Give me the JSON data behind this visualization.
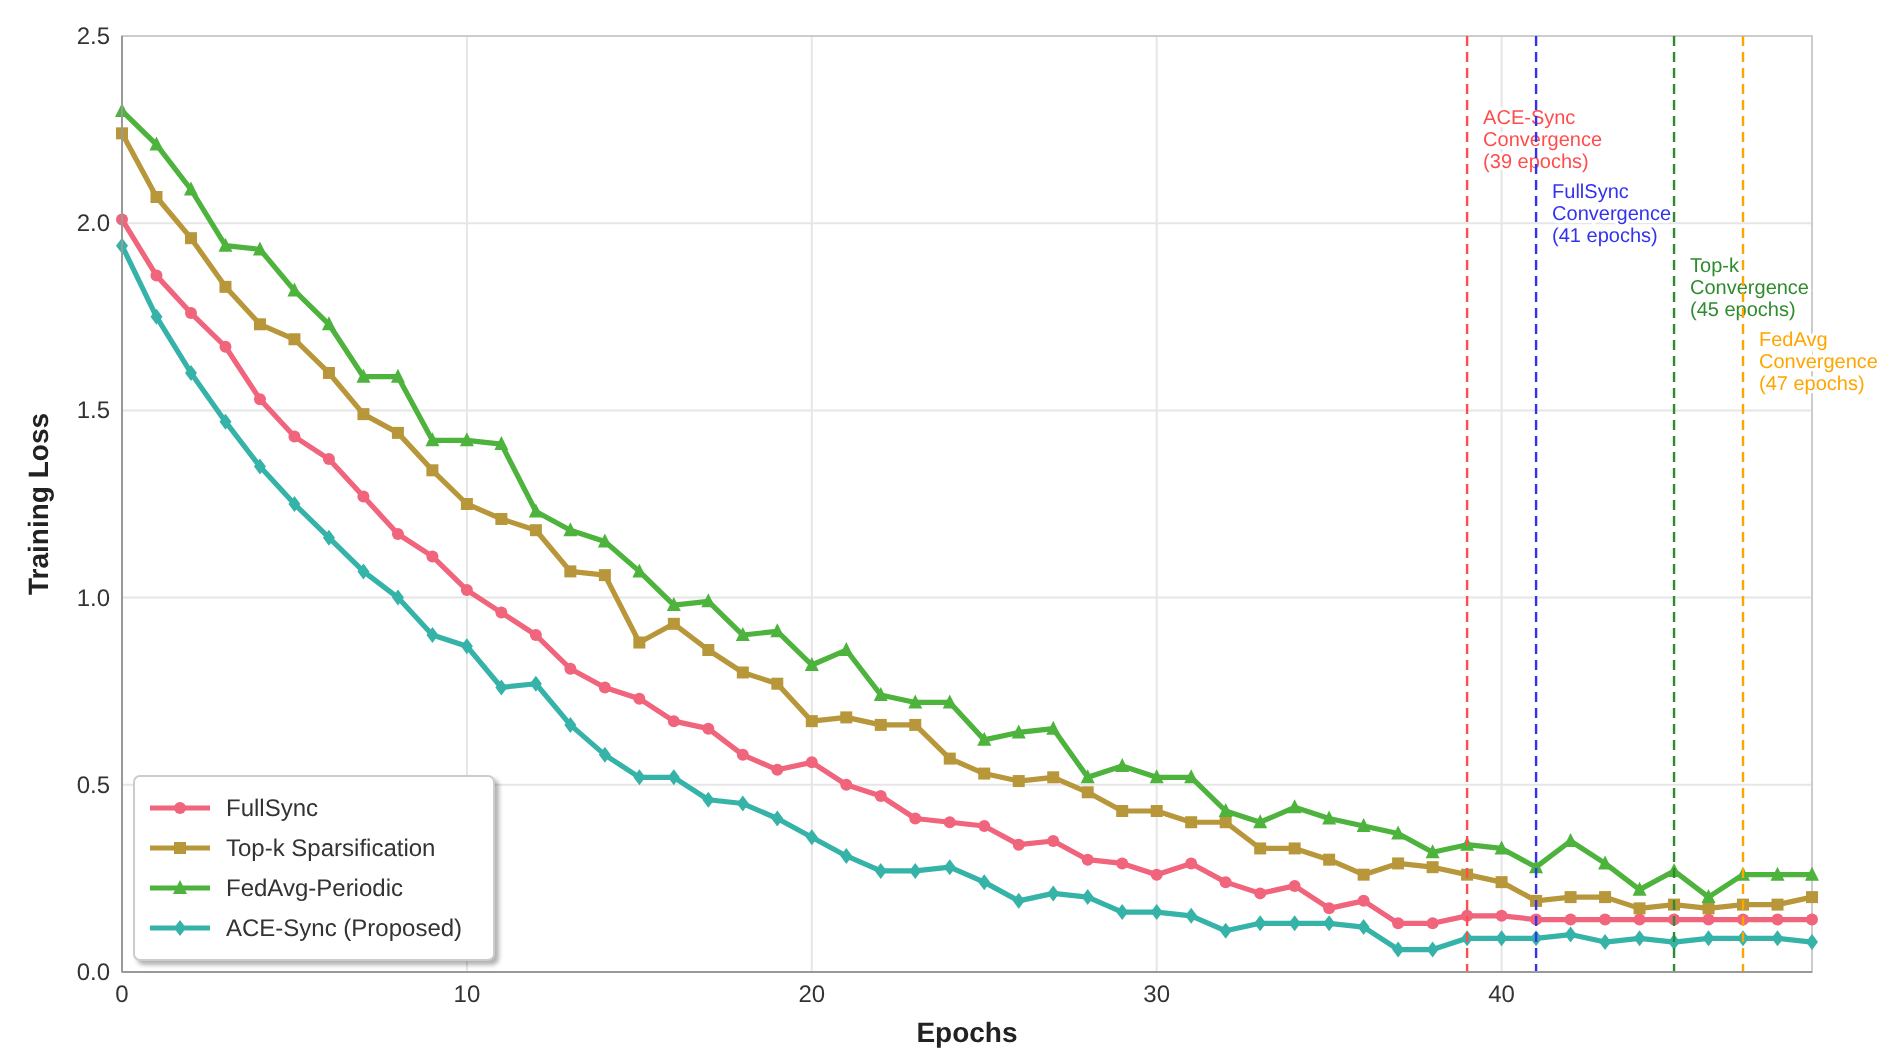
{
  "chart_data": {
    "type": "line",
    "xlabel": "Epochs",
    "ylabel": "Training Loss",
    "x": [
      0,
      1,
      2,
      3,
      4,
      5,
      6,
      7,
      8,
      9,
      10,
      11,
      12,
      13,
      14,
      15,
      16,
      17,
      18,
      19,
      20,
      21,
      22,
      23,
      24,
      25,
      26,
      27,
      28,
      29,
      30,
      31,
      32,
      33,
      34,
      35,
      36,
      37,
      38,
      39,
      40,
      41,
      42,
      43,
      44,
      45,
      46,
      47,
      48,
      49
    ],
    "xlim": [
      0,
      49
    ],
    "xticks": [
      0,
      10,
      20,
      30,
      40
    ],
    "ylim": [
      0,
      2.5
    ],
    "yticks": [
      {
        "value": 0,
        "label": "0.0"
      },
      0.5,
      {
        "value": 1,
        "label": "1.0"
      },
      1.5,
      {
        "value": 2,
        "label": "2.0"
      },
      2.5
    ],
    "grid": true,
    "legend": "bottom left",
    "line_style": "solid",
    "series": [
      {
        "name": "FullSync",
        "color": "#f0647c",
        "marker": "circle",
        "values": [
          2.01,
          1.86,
          1.76,
          1.67,
          1.53,
          1.43,
          1.37,
          1.27,
          1.17,
          1.11,
          1.02,
          0.96,
          0.9,
          0.81,
          0.76,
          0.73,
          0.67,
          0.65,
          0.58,
          0.54,
          0.56,
          0.5,
          0.47,
          0.41,
          0.4,
          0.39,
          0.34,
          0.35,
          0.3,
          0.29,
          0.26,
          0.29,
          0.24,
          0.21,
          0.23,
          0.17,
          0.19,
          0.13,
          0.13,
          0.15,
          0.15,
          0.14,
          0.14,
          0.14,
          0.14,
          0.14,
          0.14,
          0.14,
          0.14,
          0.14
        ]
      },
      {
        "name": "Top-k Sparsification",
        "color": "#b8973a",
        "marker": "square",
        "values": [
          2.24,
          2.07,
          1.96,
          1.83,
          1.73,
          1.69,
          1.6,
          1.49,
          1.44,
          1.34,
          1.25,
          1.21,
          1.18,
          1.07,
          1.06,
          0.88,
          0.93,
          0.86,
          0.8,
          0.77,
          0.67,
          0.68,
          0.66,
          0.66,
          0.57,
          0.53,
          0.51,
          0.52,
          0.48,
          0.43,
          0.43,
          0.4,
          0.4,
          0.33,
          0.33,
          0.3,
          0.26,
          0.29,
          0.28,
          0.26,
          0.24,
          0.19,
          0.2,
          0.2,
          0.17,
          0.18,
          0.17,
          0.18,
          0.18,
          0.2
        ]
      },
      {
        "name": "FedAvg-Periodic",
        "color": "#4db33d",
        "marker": "triangle",
        "values": [
          2.3,
          2.21,
          2.09,
          1.94,
          1.93,
          1.82,
          1.73,
          1.59,
          1.59,
          1.42,
          1.42,
          1.41,
          1.23,
          1.18,
          1.15,
          1.07,
          0.98,
          0.99,
          0.9,
          0.91,
          0.82,
          0.86,
          0.74,
          0.72,
          0.72,
          0.62,
          0.64,
          0.65,
          0.52,
          0.55,
          0.52,
          0.52,
          0.43,
          0.4,
          0.44,
          0.41,
          0.39,
          0.37,
          0.32,
          0.34,
          0.33,
          0.28,
          0.35,
          0.29,
          0.22,
          0.27,
          0.2,
          0.26,
          0.26,
          0.26
        ]
      },
      {
        "name": "ACE-Sync (Proposed)",
        "color": "#36b3a8",
        "marker": "diamond",
        "values": [
          1.94,
          1.75,
          1.6,
          1.47,
          1.35,
          1.25,
          1.16,
          1.07,
          1.0,
          0.9,
          0.87,
          0.76,
          0.77,
          0.66,
          0.58,
          0.52,
          0.52,
          0.46,
          0.45,
          0.41,
          0.36,
          0.31,
          0.27,
          0.27,
          0.28,
          0.24,
          0.19,
          0.21,
          0.2,
          0.16,
          0.16,
          0.15,
          0.11,
          0.13,
          0.13,
          0.13,
          0.12,
          0.06,
          0.06,
          0.09,
          0.09,
          0.09,
          0.1,
          0.08,
          0.09,
          0.08,
          0.09,
          0.09,
          0.09,
          0.08
        ]
      }
    ],
    "ref_lines": [
      {
        "axis": "x",
        "value": 39,
        "label": "ACE-Sync\nConvergence\n(39 epochs)",
        "color": "#ff4d4d",
        "line_style": "dashed"
      },
      {
        "axis": "x",
        "value": 41,
        "label": "FullSync\nConvergence\n(41 epochs)",
        "color": "#3333ee",
        "line_style": "dashed"
      },
      {
        "axis": "x",
        "value": 45,
        "label": "Top-k\nConvergence\n(45 epochs)",
        "color": "#2e8b2e",
        "line_style": "dashed"
      },
      {
        "axis": "x",
        "value": 47,
        "label": "FedAvg\nConvergence\n(47 epochs)",
        "color": "#ffa500",
        "line_style": "dashed"
      }
    ]
  }
}
